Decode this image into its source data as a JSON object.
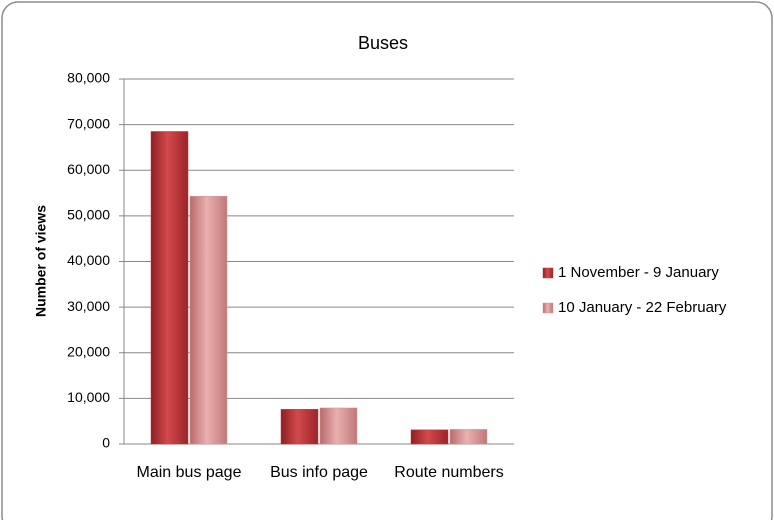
{
  "chart_data": {
    "type": "bar",
    "title": "Buses",
    "y_label": "Number of views",
    "categories": [
      "Main bus page",
      "Bus info page",
      "Route numbers"
    ],
    "series": [
      {
        "name": "1 November - 9 January",
        "color": "#c0393b",
        "values": [
          68500,
          7600,
          3100
        ]
      },
      {
        "name": "10 January - 22 February",
        "color": "#d99594",
        "values": [
          54300,
          7900,
          3200
        ]
      }
    ],
    "ylim": [
      0,
      80000
    ],
    "yticks": [
      0,
      {
        "value": 10000,
        "label": "10,000"
      },
      {
        "value": 20000,
        "label": "20,000"
      },
      {
        "value": 30000,
        "label": "30,000"
      },
      {
        "value": 40000,
        "label": "40,000"
      },
      {
        "value": 50000,
        "label": "50,000"
      },
      {
        "value": 60000,
        "label": "60,000"
      },
      {
        "value": 70000,
        "label": "70,000"
      },
      {
        "value": 80000,
        "label": "80,000"
      }
    ],
    "grid": true,
    "legend": "right"
  }
}
